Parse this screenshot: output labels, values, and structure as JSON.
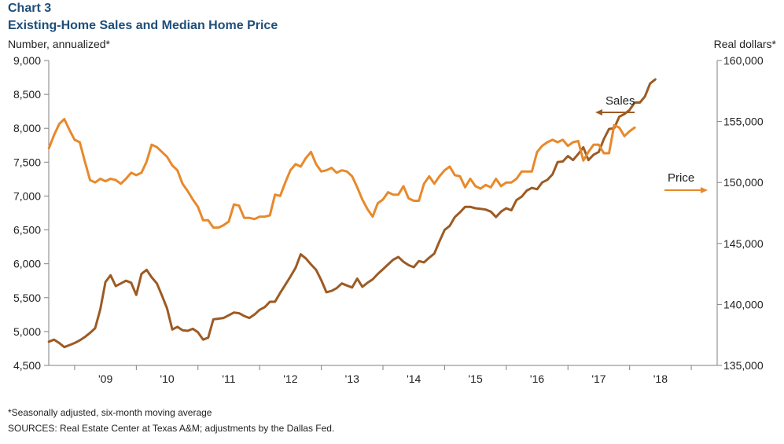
{
  "chart_data": {
    "type": "line",
    "chart_label": "Chart 3",
    "title": "Existing-Home Sales and Median Home Price",
    "ylabel_left": "Number, annualized*",
    "ylabel_right": "Real dollars*",
    "ylim_left": [
      4500,
      9000
    ],
    "yticks_left": [
      "4,500",
      "5,000",
      "5,500",
      "6,000",
      "6,500",
      "7,000",
      "7,500",
      "8,000",
      "8,500",
      "9,000"
    ],
    "ylim_right": [
      135000,
      160000
    ],
    "yticks_right": [
      "135,000",
      "140,000",
      "145,000",
      "150,000",
      "155,000",
      "160,000"
    ],
    "x_start": 2008.583,
    "x_step": 0.08333,
    "x_range": [
      2008.58,
      2019.42
    ],
    "xticks": [
      "'09",
      "'10",
      "'11",
      "'12",
      "'13",
      "'14",
      "'15",
      "'16",
      "'17",
      "'18"
    ],
    "xtick_years": [
      2009,
      2010,
      2011,
      2012,
      2013,
      2014,
      2015,
      2016,
      2017,
      2018
    ],
    "grid": false,
    "series": [
      {
        "name": "Sales",
        "axis": "left",
        "color": "#9c5b24",
        "values": [
          4850,
          4880,
          4830,
          4770,
          4800,
          4830,
          4870,
          4920,
          4980,
          5050,
          5330,
          5730,
          5830,
          5670,
          5710,
          5750,
          5720,
          5540,
          5850,
          5910,
          5800,
          5710,
          5530,
          5340,
          5030,
          5070,
          5020,
          5010,
          5040,
          4990,
          4880,
          4910,
          5180,
          5190,
          5200,
          5240,
          5280,
          5270,
          5230,
          5200,
          5250,
          5320,
          5360,
          5440,
          5440,
          5570,
          5690,
          5810,
          5940,
          6140,
          6080,
          5990,
          5910,
          5760,
          5580,
          5600,
          5640,
          5710,
          5680,
          5650,
          5780,
          5660,
          5720,
          5770,
          5850,
          5920,
          5990,
          6060,
          6100,
          6030,
          5980,
          5950,
          6040,
          6020,
          6090,
          6150,
          6330,
          6500,
          6560,
          6690,
          6760,
          6840,
          6840,
          6820,
          6810,
          6800,
          6770,
          6690,
          6770,
          6820,
          6790,
          6940,
          6990,
          7080,
          7120,
          7100,
          7200,
          7240,
          7320,
          7500,
          7510,
          7590,
          7530,
          7620,
          7720,
          7530,
          7610,
          7650,
          7840,
          7990,
          8000,
          8170,
          8210,
          8270,
          8380,
          8380,
          8470,
          8660,
          8720
        ]
      },
      {
        "name": "Price",
        "axis": "right",
        "color": "#e8892b",
        "values": [
          152800,
          153900,
          154800,
          155200,
          154300,
          153500,
          153300,
          151700,
          150200,
          150000,
          150300,
          150100,
          150300,
          150200,
          149900,
          150300,
          150800,
          150600,
          150800,
          151700,
          153100,
          152900,
          152500,
          152100,
          151400,
          151000,
          149900,
          149300,
          148600,
          148000,
          146900,
          146900,
          146300,
          146300,
          146500,
          146800,
          148200,
          148100,
          147100,
          147100,
          147000,
          147200,
          147200,
          147300,
          149000,
          148900,
          150000,
          151000,
          151500,
          151300,
          152000,
          152500,
          151500,
          150900,
          151000,
          151200,
          150800,
          151000,
          150900,
          150500,
          149600,
          148600,
          147800,
          147200,
          148300,
          148600,
          149200,
          149000,
          149000,
          149700,
          148700,
          148500,
          148500,
          149900,
          150500,
          149900,
          150500,
          151000,
          151300,
          150600,
          150500,
          149600,
          150300,
          149700,
          149500,
          149800,
          149600,
          150300,
          149700,
          150000,
          150000,
          150300,
          150900,
          150900,
          150900,
          152500,
          153000,
          153300,
          153500,
          153300,
          153500,
          153000,
          153300,
          153400,
          151800,
          152500,
          153100,
          153100,
          152400,
          152400,
          154700,
          154500,
          153800,
          154200,
          154500
        ]
      }
    ],
    "annotations": {
      "sales_label": "Sales",
      "price_label": "Price"
    }
  },
  "footnote": "*Seasonally adjusted, six-month moving average",
  "sources": "SOURCES: Real Estate Center at Texas A&M; adjustments by the Dallas Fed."
}
